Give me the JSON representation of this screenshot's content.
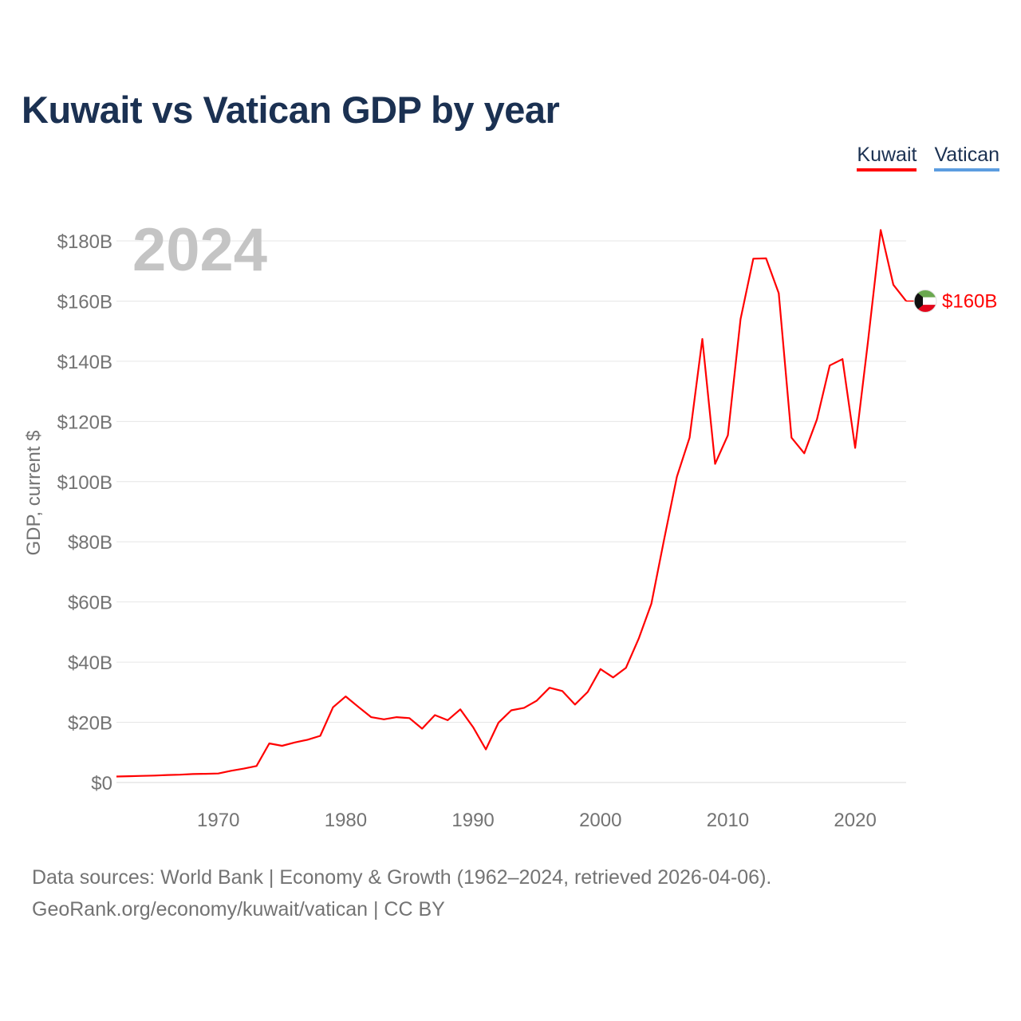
{
  "title": "Kuwait vs Vatican GDP by year",
  "legend": [
    {
      "name": "Kuwait",
      "color": "#ff0000"
    },
    {
      "name": "Vatican",
      "color": "#5b9de0"
    }
  ],
  "year_label": "2024",
  "end_label": "$160B",
  "footer": {
    "line1": "Data sources: World Bank | Economy & Growth (1962–2024, retrieved 2026-04-06).",
    "line2": "GeoRank.org/economy/kuwait/vatican | CC BY"
  },
  "chart_data": {
    "type": "line",
    "title": "Kuwait vs Vatican GDP by year",
    "xlabel": "",
    "ylabel": "GDP, current $",
    "xlim": [
      1962,
      2024
    ],
    "ylim": [
      0,
      180
    ],
    "y_unit": "billion US$",
    "x_ticks": [
      1970,
      1980,
      1990,
      2000,
      2010,
      2020
    ],
    "y_ticks": [
      {
        "value": 0,
        "label": "$0"
      },
      {
        "value": 20,
        "label": "$20B"
      },
      {
        "value": 40,
        "label": "$40B"
      },
      {
        "value": 60,
        "label": "$60B"
      },
      {
        "value": 80,
        "label": "$80B"
      },
      {
        "value": 100,
        "label": "$100B"
      },
      {
        "value": 120,
        "label": "$120B"
      },
      {
        "value": 140,
        "label": "$140B"
      },
      {
        "value": 160,
        "label": "$160B"
      },
      {
        "value": 180,
        "label": "$180B"
      }
    ],
    "grid": true,
    "legend_position": "top-right",
    "series": [
      {
        "name": "Kuwait",
        "color": "#ff0000",
        "x": [
          1962,
          1963,
          1964,
          1965,
          1966,
          1967,
          1968,
          1969,
          1970,
          1971,
          1972,
          1973,
          1974,
          1975,
          1976,
          1977,
          1978,
          1979,
          1980,
          1981,
          1982,
          1983,
          1984,
          1985,
          1986,
          1987,
          1988,
          1989,
          1990,
          1991,
          1992,
          1993,
          1994,
          1995,
          1996,
          1997,
          1998,
          1999,
          2000,
          2001,
          2002,
          2003,
          2004,
          2005,
          2006,
          2007,
          2008,
          2009,
          2010,
          2011,
          2012,
          2013,
          2014,
          2015,
          2016,
          2017,
          2018,
          2019,
          2020,
          2021,
          2022,
          2023,
          2024
        ],
        "values": [
          2.0,
          2.1,
          2.2,
          2.3,
          2.5,
          2.6,
          2.8,
          2.9,
          3.0,
          3.9,
          4.6,
          5.5,
          13.0,
          12.2,
          13.3,
          14.2,
          15.5,
          25.0,
          28.6,
          25.1,
          21.7,
          21.0,
          21.7,
          21.4,
          17.9,
          22.4,
          20.7,
          24.3,
          18.4,
          11.0,
          19.9,
          24.0,
          24.8,
          27.2,
          31.5,
          30.4,
          25.9,
          30.1,
          37.7,
          34.9,
          38.1,
          47.8,
          59.4,
          80.8,
          101.6,
          114.6,
          147.4,
          105.9,
          115.4,
          154.0,
          174.1,
          174.2,
          162.6,
          114.6,
          109.4,
          120.7,
          138.6,
          140.7,
          111.2,
          146.4,
          183.6,
          165.4,
          160.0
        ]
      },
      {
        "name": "Vatican",
        "color": "#5b9de0",
        "x": [],
        "values": []
      }
    ],
    "annotations": [
      {
        "text": "2024",
        "position": "top-left"
      },
      {
        "text": "$160B",
        "position": "line-end"
      }
    ]
  }
}
